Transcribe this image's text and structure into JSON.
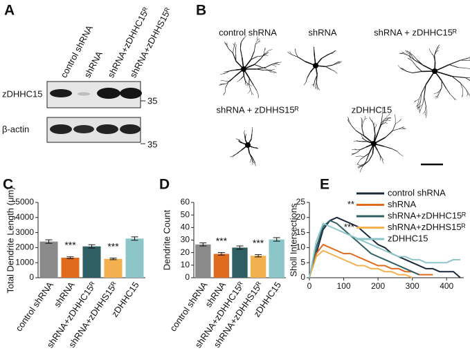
{
  "panel_a": {
    "panel_label": "A",
    "lanes": [
      "control shRNA",
      "shRNA",
      "shRNA+zDHHC15ᴿ",
      "shRNA+zDHHS15ᴿ"
    ],
    "rows": [
      {
        "label": "zDHHC15",
        "marker": "35"
      },
      {
        "label": "β-actin",
        "marker": "35"
      }
    ]
  },
  "panel_b": {
    "panel_label": "B",
    "labels": [
      "control shRNA",
      "shRNA",
      "shRNA + zDHHC15ᴿ",
      "shRNA + zDHHS15ᴿ",
      "zDHHC15"
    ]
  },
  "chart_data": [
    {
      "type": "bar",
      "panel_label": "C",
      "y_label": "Total Dendrite Length (μm)",
      "categories": [
        "control shRNA",
        "shRNA",
        "shRNA+zDHHC15ᴿ",
        "shRNA+zDHHS15ᴿ",
        "zDHHC15"
      ],
      "values": [
        2400,
        1330,
        2080,
        1250,
        2600
      ],
      "errors": [
        120,
        60,
        110,
        50,
        110
      ],
      "colors": [
        "#8a8a8a",
        "#e06a1e",
        "#2f5f62",
        "#f2b04e",
        "#8cc6c8"
      ],
      "significance": [
        null,
        "***",
        null,
        "***",
        null
      ],
      "ylim": [
        0,
        5000
      ],
      "yticks": [
        0,
        1000,
        2000,
        3000,
        4000,
        5000
      ]
    },
    {
      "type": "bar",
      "panel_label": "D",
      "y_label": "Dendrite Count",
      "categories": [
        "control shRNA",
        "shRNA",
        "shRNA+zDHHC15ᴿ",
        "shRNA+zDHHS15ᴿ",
        "zDHHC15"
      ],
      "values": [
        26.5,
        19,
        24,
        17.5,
        30.5
      ],
      "errors": [
        1.2,
        1,
        1.3,
        0.9,
        1.4
      ],
      "colors": [
        "#8a8a8a",
        "#e06a1e",
        "#2f5f62",
        "#f2b04e",
        "#8cc6c8"
      ],
      "significance": [
        null,
        "***",
        null,
        "***",
        null
      ],
      "ylim": [
        0,
        60
      ],
      "yticks": [
        0,
        10,
        20,
        30,
        40,
        50,
        60
      ]
    },
    {
      "type": "line",
      "panel_label": "E",
      "y_label": "Sholl Intersections",
      "x": [
        0,
        20,
        40,
        60,
        80,
        100,
        120,
        140,
        160,
        180,
        200,
        220,
        240,
        260,
        280,
        300,
        320,
        340,
        360,
        380,
        400,
        420,
        440
      ],
      "series": [
        {
          "name": "control shRNA",
          "color": "#1b2838",
          "values": [
            0,
            8,
            16,
            19,
            20,
            19,
            18,
            17,
            15,
            13,
            11,
            10,
            8,
            7,
            6,
            5,
            4,
            3,
            3,
            2,
            2,
            2,
            0
          ]
        },
        {
          "name": "shRNA",
          "color": "#e06a1e",
          "significance": "**",
          "values": [
            0,
            8,
            11,
            10,
            9,
            8,
            8,
            7,
            6,
            5,
            4,
            4,
            3,
            3,
            2,
            2,
            1,
            1,
            1,
            null,
            null,
            null,
            null
          ]
        },
        {
          "name": "shRNA+zDHHC15ᴿ",
          "color": "#2f5f62",
          "values": [
            0,
            10,
            17,
            19,
            18,
            16,
            14,
            12,
            10,
            8,
            7,
            6,
            5,
            4,
            3,
            2,
            1,
            null,
            null,
            null,
            null,
            null,
            null
          ]
        },
        {
          "name": "shRNA+zDHHS15ᴿ",
          "color": "#f2b04e",
          "significance": "***",
          "values": [
            0,
            7,
            9,
            8,
            7,
            6,
            5,
            4,
            4,
            3,
            3,
            2,
            2,
            1,
            1,
            0,
            null,
            null,
            null,
            null,
            null,
            null,
            null
          ]
        },
        {
          "name": "zDHHC15",
          "color": "#8cc6c8",
          "values": [
            0,
            12,
            18,
            17,
            16,
            15,
            14,
            13,
            12,
            11,
            10,
            9,
            8,
            7,
            7,
            6,
            6,
            5,
            5,
            5,
            5,
            6,
            6
          ]
        }
      ],
      "xlim": [
        0,
        450
      ],
      "xticks": [
        0,
        100,
        200,
        300,
        400
      ],
      "ylim": [
        0,
        25
      ],
      "yticks": [
        0,
        5,
        10,
        15,
        20,
        25
      ]
    }
  ]
}
